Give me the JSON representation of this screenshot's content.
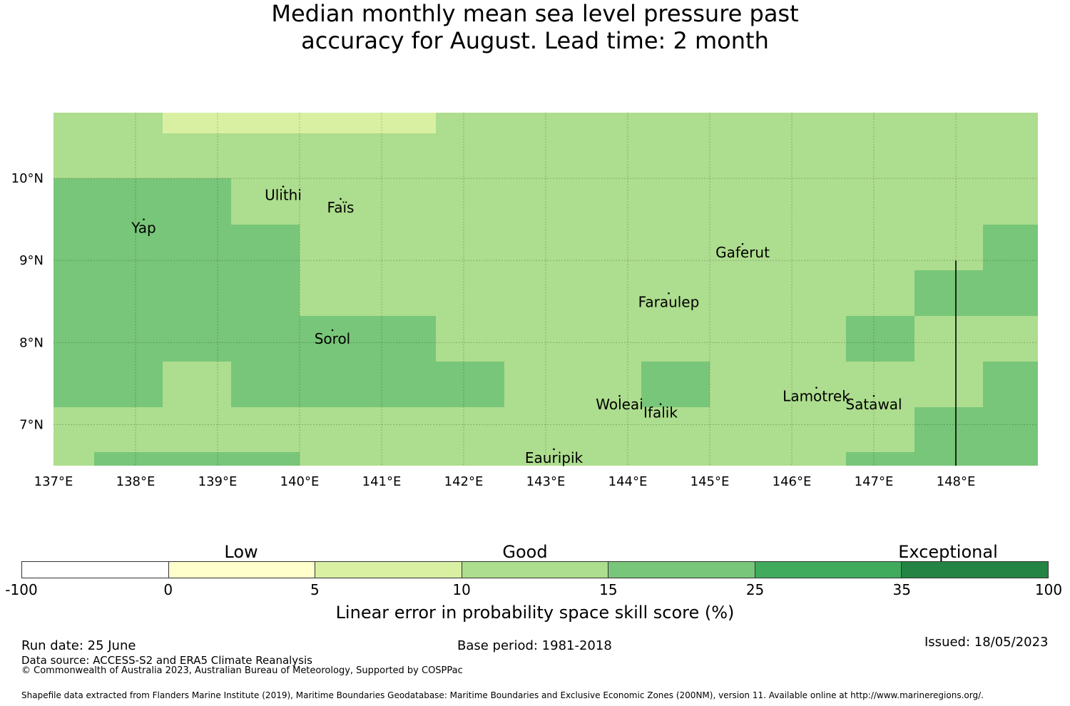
{
  "title": {
    "line1": "Median monthly mean sea level pressure past",
    "line2": "accuracy for August. Lead time: 2 month"
  },
  "map": {
    "lon_labels": [
      "137°E",
      "138°E",
      "139°E",
      "140°E",
      "141°E",
      "142°E",
      "143°E",
      "144°E",
      "145°E",
      "146°E",
      "147°E",
      "148°E"
    ],
    "lat_labels": [
      "10°N",
      "9°N",
      "8°N",
      "7°N"
    ],
    "places": [
      {
        "name": "Ulithi",
        "lon": 139.8,
        "lat": 9.9
      },
      {
        "name": "Faïs",
        "lon": 140.5,
        "lat": 9.75
      },
      {
        "name": "Yap",
        "lon": 138.1,
        "lat": 9.5
      },
      {
        "name": "Gaferut",
        "lon": 145.4,
        "lat": 9.2
      },
      {
        "name": "Faraulep",
        "lon": 144.5,
        "lat": 8.6
      },
      {
        "name": "Sorol",
        "lon": 140.4,
        "lat": 8.15
      },
      {
        "name": "Woleai",
        "lon": 143.9,
        "lat": 7.35
      },
      {
        "name": "Ifalik",
        "lon": 144.4,
        "lat": 7.25
      },
      {
        "name": "Lamotrek",
        "lon": 146.3,
        "lat": 7.45
      },
      {
        "name": "Satawal",
        "lon": 147.0,
        "lat": 7.35
      },
      {
        "name": "Eauripik",
        "lon": 143.1,
        "lat": 6.7
      }
    ]
  },
  "colorbar": {
    "colors": [
      "#ffffff",
      "#ffffcc",
      "#d9f0a3",
      "#addd8e",
      "#78c679",
      "#41ab5d",
      "#238443"
    ],
    "ticks": [
      "-100",
      "0",
      "5",
      "10",
      "15",
      "25",
      "35",
      "100"
    ],
    "categories": [
      "Low",
      "Good",
      "Exceptional"
    ],
    "label": "Linear error in probability space skill score (%)"
  },
  "footer": {
    "run_date": "Run date: 25 June",
    "base_period": "Base period: 1981-2018",
    "issued": "Issued: 18/05/2023",
    "data_source": "Data source: ACCESS-S2 and ERA5 Climate Reanalysis",
    "copyright": "© Commonwealth of Australia 2023, Australian Bureau of Meteorology, Supported by COSPPac",
    "shapefile": "Shapefile data extracted from Flanders Marine Institute (2019), Maritime Boundaries Geodatabase: Maritime Boundaries and Exclusive Economic Zones (200NM), version 11. Available online at http://www.marineregions.org/."
  }
}
